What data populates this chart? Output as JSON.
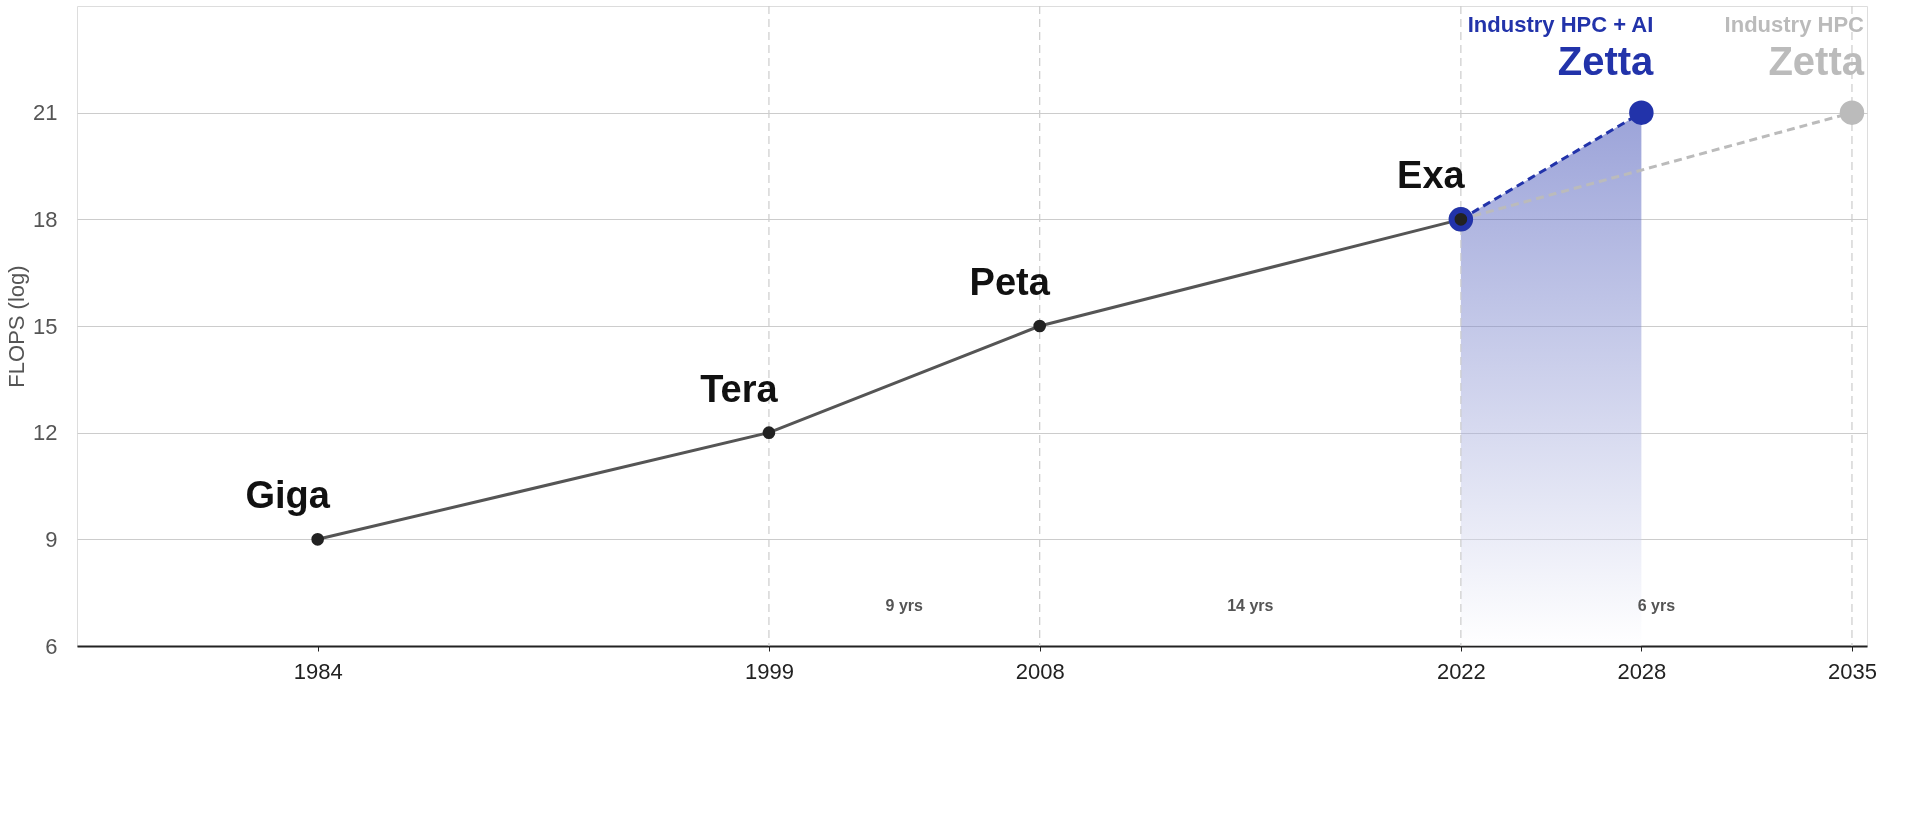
{
  "chart_data": {
    "type": "line",
    "ylabel": "FLOPS (log)",
    "xlim": [
      1976,
      2035.5
    ],
    "xticks": [
      1984,
      1999,
      2008,
      2022,
      2028,
      2035
    ],
    "ylim": [
      6,
      24
    ],
    "yticks": [
      6,
      9,
      12,
      15,
      18,
      21
    ],
    "grid": "y",
    "marker": "circle",
    "series": [
      {
        "color": "#555555",
        "x": [
          1984,
          1999,
          2008,
          2022
        ],
        "values": [
          9,
          12,
          15,
          18
        ],
        "line_style": "solid"
      },
      {
        "name": "Industry HPC + AI",
        "type": "area",
        "color": "#2233aa",
        "x": [
          2022,
          2028
        ],
        "values": [
          18,
          21
        ],
        "line_style": "dashed"
      },
      {
        "name": "Industry HPC",
        "color": "#bbbbbb",
        "x": [
          2022,
          2035
        ],
        "values": [
          18,
          21
        ],
        "line_style": "dashed"
      }
    ],
    "ref_lines": [
      {
        "axis": "x",
        "value": 1999,
        "color": "#cccccc",
        "line_style": "dashed"
      },
      {
        "axis": "x",
        "value": 2008,
        "color": "#cccccc",
        "line_style": "dashed"
      },
      {
        "axis": "x",
        "value": 2022,
        "color": "#cccccc",
        "line_style": "dashed"
      },
      {
        "axis": "x",
        "value": 2035,
        "color": "#cccccc",
        "line_style": "dashed"
      }
    ],
    "annotations": [
      {
        "text": "Giga",
        "x": 1984,
        "y": 9
      },
      {
        "text": "Tera",
        "x": 1999,
        "y": 12
      },
      {
        "text": "Peta",
        "x": 2008,
        "y": 15
      },
      {
        "text": "Exa",
        "x": 2022,
        "y": 18
      },
      {
        "text": "Zetta",
        "x": 2028,
        "y": 21
      },
      {
        "text": "Zetta",
        "x": 2035,
        "y": 21
      },
      "9 yrs",
      "14 yrs",
      "6 yrs"
    ]
  }
}
